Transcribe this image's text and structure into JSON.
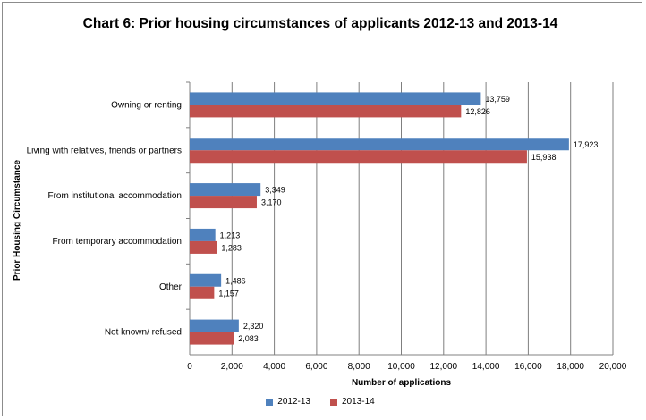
{
  "chart_data": {
    "type": "bar",
    "orientation": "horizontal",
    "title": "Chart 6:  Prior housing circumstances of applicants 2012-13 and 2013-14",
    "xlabel": "Number of applications",
    "ylabel": "Prior Housing Circumstance",
    "categories": [
      "Owning or renting",
      "Living with relatives, friends or partners",
      "From institutional accommodation",
      "From temporary accommodation",
      "Other",
      "Not known/ refused"
    ],
    "series": [
      {
        "name": "2012-13",
        "color": "#4f81bd",
        "values": [
          13759,
          17923,
          3349,
          1213,
          1486,
          2320
        ],
        "labels": [
          "13,759",
          "17,923",
          "3,349",
          "1,213",
          "1,486",
          "2,320"
        ]
      },
      {
        "name": "2013-14",
        "color": "#c0504d",
        "values": [
          12826,
          15938,
          3170,
          1283,
          1157,
          2083
        ],
        "labels": [
          "12,826",
          "15,938",
          "3,170",
          "1,283",
          "1,157",
          "2,083"
        ]
      }
    ],
    "xlim": [
      0,
      20000
    ],
    "xticks": [
      0,
      2000,
      4000,
      6000,
      8000,
      10000,
      12000,
      14000,
      16000,
      18000,
      20000
    ],
    "xtick_labels": [
      "0",
      "2,000",
      "4,000",
      "6,000",
      "8,000",
      "10,000",
      "12,000",
      "14,000",
      "16,000",
      "18,000",
      "20,000"
    ],
    "grid": "vertical",
    "legend": "bottom"
  }
}
